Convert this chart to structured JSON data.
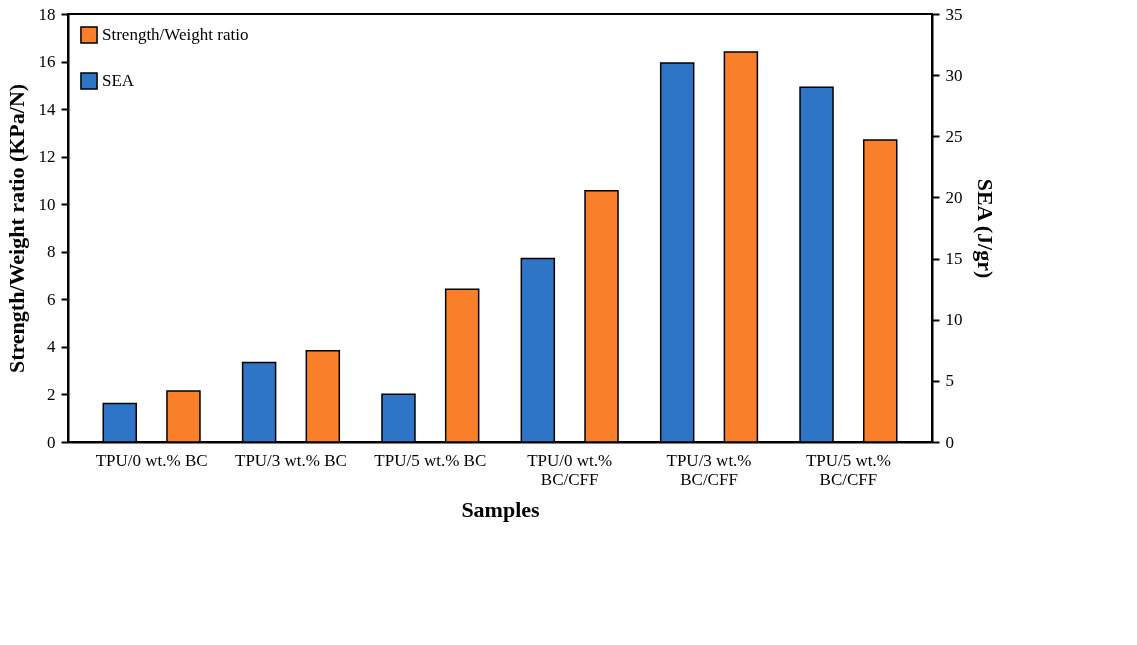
{
  "chart_data": {
    "type": "bar",
    "xlabel": "Samples",
    "ylabel": "Strength/Weight ratio (KPa/N)",
    "y2label": "SEA (J/gr)",
    "categories": [
      "TPU/0 wt.% BC",
      "TPU/3 wt.% BC",
      "TPU/5 wt.% BC",
      "TPU/0 wt.%\nBC/CFF",
      "TPU/3 wt.%\nBC/CFF",
      "TPU/5 wt.%\nBC/CFF"
    ],
    "series": [
      {
        "name": "SEA",
        "color": "#2e75c8",
        "axis": "y2",
        "values": [
          3.15,
          6.5,
          3.9,
          15.0,
          31.0,
          29.0
        ]
      },
      {
        "name": "Strength/Weight ratio",
        "color": "#f97f2a",
        "values": [
          2.14,
          3.84,
          6.42,
          10.57,
          16.4,
          12.7
        ]
      }
    ],
    "ylim": [
      0,
      18
    ],
    "yticks": [
      0,
      2,
      4,
      6,
      8,
      10,
      12,
      14,
      16,
      18
    ],
    "y2lim": [
      0,
      35
    ],
    "y2ticks": [
      0,
      5,
      10,
      15,
      20,
      25,
      30,
      35
    ],
    "grid": false,
    "legend": "top left"
  }
}
